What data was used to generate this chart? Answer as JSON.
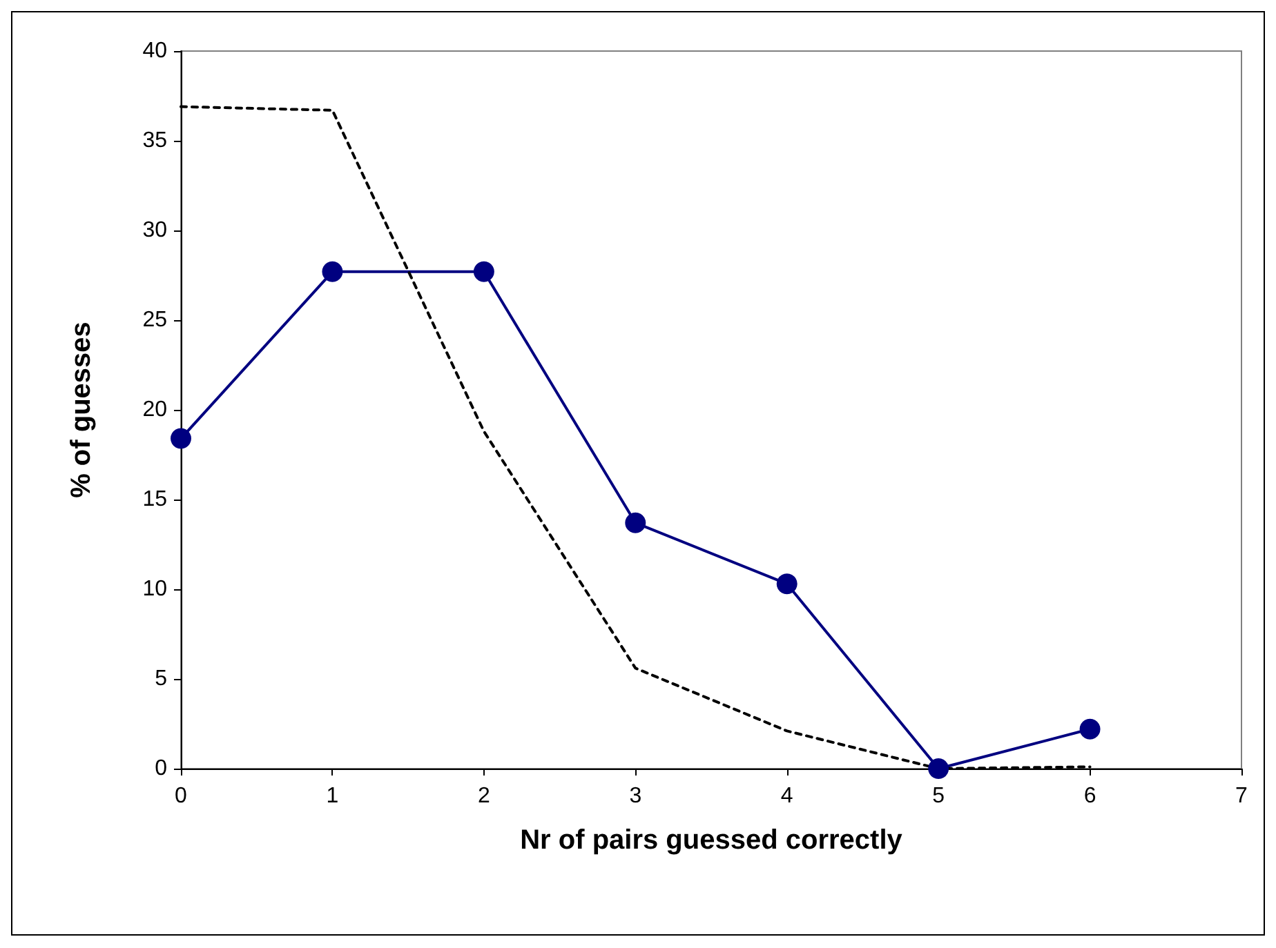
{
  "chart_data": {
    "type": "line",
    "xlabel": "Nr of pairs guessed correctly",
    "ylabel": "% of guesses",
    "x": [
      0,
      1,
      2,
      3,
      4,
      5,
      6
    ],
    "series": [
      {
        "color": "#000080",
        "values": [
          18.4,
          27.7,
          27.7,
          13.7,
          10.3,
          0,
          2.2
        ],
        "marker": "circle",
        "line_style": "solid"
      },
      {
        "color": "#000000",
        "values": [
          36.9,
          36.7,
          18.8,
          5.6,
          2.1,
          0,
          0.1
        ],
        "marker": "none",
        "line_style": "dashed"
      }
    ],
    "xlim": [
      0,
      7
    ],
    "xticks": [
      0,
      1,
      2,
      3,
      4,
      5,
      6,
      7
    ],
    "ylim": [
      0,
      40
    ],
    "yticks": [
      0,
      5,
      10,
      15,
      20,
      25,
      30,
      35,
      40
    ],
    "grid": false
  }
}
